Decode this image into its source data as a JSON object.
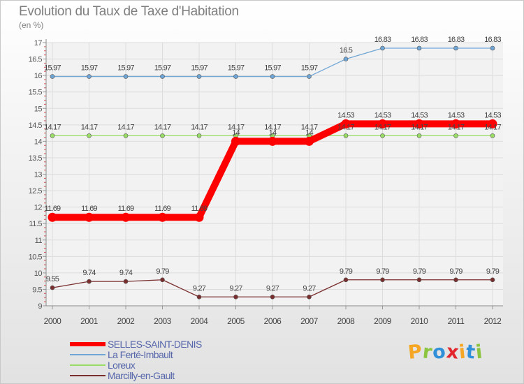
{
  "chart_data": {
    "type": "line",
    "title": "Evolution du Taux de Taxe d'Habitation",
    "ylabel": "(en %)",
    "xlabel": "",
    "ylim": [
      9,
      17
    ],
    "yticks": [
      "9",
      "9.5",
      "10",
      "10.5",
      "11",
      "11.5",
      "12",
      "12.5",
      "13",
      "13.5",
      "14",
      "14.5",
      "15",
      "15.5",
      "16",
      "16.5",
      "17"
    ],
    "categories": [
      "2000",
      "2001",
      "2002",
      "2003",
      "2004",
      "2005",
      "2006",
      "2007",
      "2008",
      "2009",
      "2010",
      "2011",
      "2012"
    ],
    "grid": true,
    "legend_position": "bottom-left",
    "series": [
      {
        "name": "SELLES-SAINT-DENIS",
        "color": "#ff0000",
        "values": [
          11.69,
          11.69,
          11.69,
          11.69,
          11.69,
          14,
          14,
          14,
          14.53,
          14.53,
          14.53,
          14.53,
          14.53
        ],
        "labels": [
          "11.69",
          "11.69",
          "11.69",
          "11.69",
          "11.69",
          "14",
          "14",
          "14",
          "14.53",
          "14.53",
          "14.53",
          "14.53",
          "14.53"
        ]
      },
      {
        "name": "La Ferté-Imbault",
        "color": "#6fa6d6",
        "values": [
          15.97,
          15.97,
          15.97,
          15.97,
          15.97,
          15.97,
          15.97,
          15.97,
          16.5,
          16.83,
          16.83,
          16.83,
          16.83
        ],
        "labels": [
          "15.97",
          "15.97",
          "15.97",
          "15.97",
          "15.97",
          "15.97",
          "15.97",
          "15.97",
          "16.5",
          "16.83",
          "16.83",
          "16.83",
          "16.83"
        ]
      },
      {
        "name": "Loreux",
        "color": "#99dd66",
        "values": [
          14.17,
          14.17,
          14.17,
          14.17,
          14.17,
          14.17,
          14.17,
          14.17,
          14.17,
          14.17,
          14.17,
          14.17,
          14.17
        ],
        "labels": [
          "14.17",
          "14.17",
          "14.17",
          "14.17",
          "14.17",
          "14.17",
          "14.17",
          "14.17",
          "14.17",
          "14.17",
          "14.17",
          "14.17",
          "14.17"
        ]
      },
      {
        "name": "Marcilly-en-Gault",
        "color": "#7a2e2e",
        "values": [
          9.55,
          9.74,
          9.74,
          9.79,
          9.27,
          9.27,
          9.27,
          9.27,
          9.79,
          9.79,
          9.79,
          9.79,
          9.79
        ],
        "labels": [
          "9.55",
          "9.74",
          "9.74",
          "9.79",
          "9.27",
          "9.27",
          "9.27",
          "9.27",
          "9.79",
          "9.79",
          "9.79",
          "9.79",
          "9.79"
        ]
      }
    ]
  },
  "brand": {
    "letters": [
      "P",
      "r",
      "o",
      "x",
      "i",
      "t",
      "i"
    ],
    "colors": [
      "#f5a623",
      "#8bc53f",
      "#2f8fd8",
      "#e3262e",
      "#f5a623",
      "#2f8fd8",
      "#8bc53f"
    ]
  }
}
